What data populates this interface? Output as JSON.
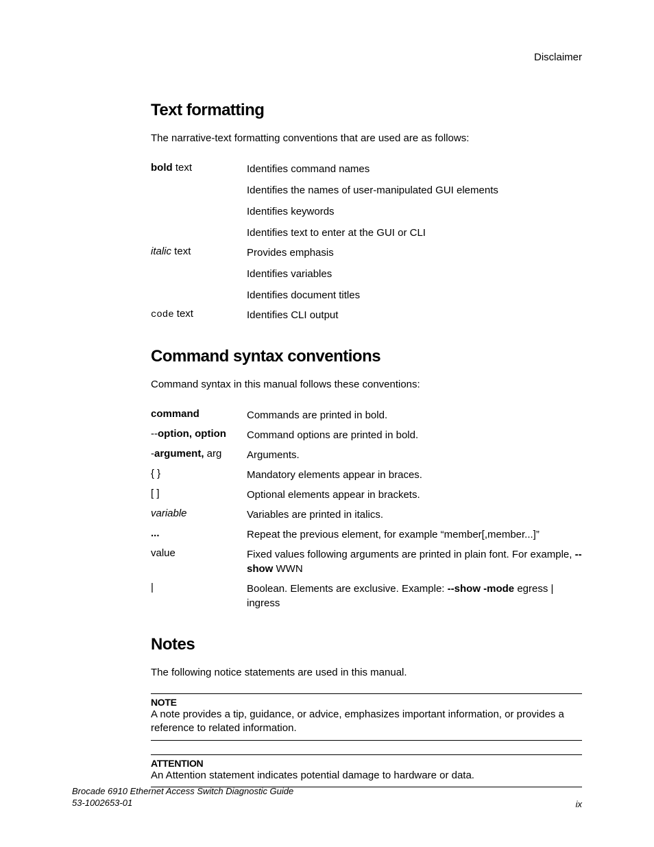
{
  "header": {
    "right_label": "Disclaimer"
  },
  "section1": {
    "title": "Text formatting",
    "intro": "The narrative-text formatting conventions that are used are as follows:",
    "rows": [
      {
        "term_html": "<span class='bold'>bold</span> text",
        "descs": [
          "Identifies command names",
          "Identifies the names of user-manipulated GUI elements",
          "Identifies keywords",
          "Identifies text to enter at the GUI or CLI"
        ]
      },
      {
        "term_html": "<span class='italic'>italic</span> text",
        "descs": [
          "Provides emphasis",
          "Identifies variables",
          "Identifies document titles"
        ]
      },
      {
        "term_html": "<span class='code'>code</span> text",
        "descs": [
          "Identifies CLI output"
        ]
      }
    ]
  },
  "section2": {
    "title": "Command syntax conventions",
    "intro": "Command syntax in this manual follows these conventions:",
    "rows": [
      {
        "term_html": "<span class='bold'>command</span>",
        "desc_html": "Commands are printed in bold."
      },
      {
        "term_html": "--<span class='bold'>option, option</span>",
        "desc_html": "Command options are printed in bold."
      },
      {
        "term_html": "-<span class='bold'>argument,</span> arg",
        "desc_html": "Arguments."
      },
      {
        "term_html": "{ }",
        "desc_html": "Mandatory elements appear in braces."
      },
      {
        "term_html": "[ ]",
        "desc_html": "Optional elements appear in brackets."
      },
      {
        "term_html": "<span class='italic'>variable</span>",
        "desc_html": "Variables are printed in italics."
      },
      {
        "term_html": "<span class='bold'>...</span>",
        "desc_html": "Repeat the previous element, for example “member[,member...]”"
      },
      {
        "term_html": "value",
        "desc_html": "Fixed values following arguments are printed in plain font. For example, <span class='bold'>--show</span> WWN"
      },
      {
        "term_html": "|",
        "desc_html": "Boolean. Elements are exclusive. Example: <span class='bold'>--show -mode</span> egress | ingress"
      }
    ]
  },
  "section3": {
    "title": "Notes",
    "intro": "The following notice statements are used in this manual.",
    "notices": [
      {
        "label": "NOTE",
        "text": "A note provides a tip, guidance, or advice, emphasizes important information, or provides a reference to related information."
      },
      {
        "label": "ATTENTION",
        "text": "An Attention statement indicates potential damage to hardware or data."
      }
    ]
  },
  "footer": {
    "title": "Brocade 6910 Ethernet Access Switch Diagnostic Guide",
    "doc_number": "53-1002653-01",
    "page_number": "ix"
  }
}
